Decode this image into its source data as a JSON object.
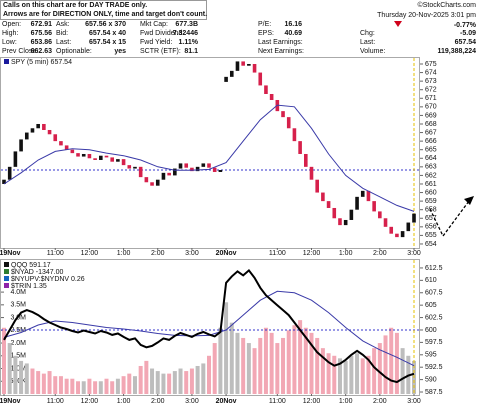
{
  "header": {
    "notes": [
      "Calls on this chart are for DAY TRADE only.",
      "Arrows are for DIRECTION ONLY, time and target don't count."
    ],
    "watermark": "©StockCharts.com",
    "timestamp": "Thursday 20-Nov-2025 3:01 pm",
    "quote": [
      [
        {
          "label": "Open:",
          "value": "672.91"
        },
        {
          "label": "Ask:",
          "value": "657.56 x 370"
        },
        {
          "label": "Mkt Cap:",
          "value": "677.3B"
        },
        {
          "label": "P/E:",
          "value": "16.16"
        },
        {
          "value": "-0.77%",
          "color": "#d0021b"
        }
      ],
      [
        {
          "label": "High:",
          "value": "675.56"
        },
        {
          "label": "Bid:",
          "value": "657.54 x 40"
        },
        {
          "label": "Fwd Dividend:",
          "value": "7.32446"
        },
        {
          "label": "EPS:",
          "value": "40.69"
        },
        {
          "label": "Chg:",
          "value": "-5.09",
          "color": "#d0021b"
        }
      ],
      [
        {
          "label": "Low:",
          "value": "653.86"
        },
        {
          "label": "Last:",
          "value": "657.54 x 15"
        },
        {
          "label": "Fwd Yield:",
          "value": "1.11%"
        },
        {
          "label": "Last Earnings:"
        },
        {
          "label": "Last:",
          "value": "657.54"
        }
      ],
      [
        {
          "label": "Prev Close:",
          "value": "662.63"
        },
        {
          "label": "Optionable:",
          "value": "yes"
        },
        {
          "label": "SCTR (ETF):",
          "value": "81.1"
        },
        {
          "label": "Next Earnings:"
        },
        {
          "label": "Volume:",
          "value": "119,388,224"
        }
      ]
    ]
  },
  "chart_data": [
    {
      "type": "candlestick",
      "legend": "SPY (5 min) 657.54",
      "legend_color": "#1a1a9c",
      "categories": [
        "19Nov",
        null,
        null,
        null,
        null,
        null,
        null,
        null,
        null,
        "11:00",
        null,
        null,
        null,
        null,
        null,
        "12:00",
        null,
        null,
        null,
        null,
        null,
        "1:00",
        null,
        null,
        null,
        null,
        null,
        "2:00",
        null,
        null,
        null,
        null,
        null,
        "3:00",
        null,
        null,
        null,
        null,
        null,
        "20Nov",
        null,
        null,
        null,
        null,
        null,
        null,
        null,
        null,
        "11:00",
        null,
        null,
        null,
        null,
        null,
        "12:00",
        null,
        null,
        null,
        null,
        null,
        "1:00",
        null,
        null,
        null,
        null,
        null,
        "2:00",
        null,
        null,
        null,
        null,
        null,
        "3:00"
      ],
      "open": [
        661.0,
        661.5,
        663.0,
        664.8,
        666.2,
        667.0,
        667.5,
        668.0,
        667.3,
        666.8,
        666.0,
        665.5,
        665.0,
        664.6,
        664.2,
        664.5,
        664.0,
        663.8,
        664.3,
        664.1,
        663.6,
        663.9,
        663.2,
        662.8,
        663.0,
        661.8,
        661.2,
        660.8,
        661.5,
        662.3,
        662.0,
        662.8,
        663.4,
        662.9,
        662.5,
        663.0,
        663.4,
        662.9,
        662.4,
        672.91,
        673.5,
        674.2,
        675.3,
        674.8,
        675.0,
        674.0,
        672.5,
        671.5,
        670.8,
        669.5,
        668.8,
        667.5,
        666.0,
        664.5,
        663.0,
        661.5,
        660.0,
        659.0,
        658.2,
        657.0,
        656.2,
        656.8,
        658.0,
        659.5,
        660.2,
        659.0,
        657.8,
        657.0,
        656.0,
        655.2,
        654.8,
        655.5,
        656.5
      ],
      "close": [
        661.5,
        663.0,
        664.8,
        666.2,
        667.0,
        667.5,
        668.0,
        667.3,
        666.8,
        666.0,
        665.5,
        665.0,
        664.6,
        664.2,
        664.5,
        664.0,
        663.8,
        664.3,
        664.1,
        663.6,
        663.9,
        663.2,
        662.8,
        663.0,
        661.8,
        661.2,
        660.8,
        661.5,
        662.3,
        662.0,
        662.8,
        663.4,
        662.9,
        662.5,
        663.0,
        663.4,
        662.9,
        662.4,
        662.63,
        673.5,
        674.2,
        675.3,
        674.8,
        675.0,
        674.0,
        672.5,
        671.5,
        670.8,
        669.5,
        668.8,
        667.5,
        666.0,
        664.5,
        663.0,
        661.5,
        660.0,
        659.0,
        658.2,
        657.0,
        656.2,
        656.8,
        658.0,
        659.5,
        660.2,
        659.0,
        657.8,
        657.0,
        656.0,
        655.2,
        654.8,
        655.5,
        656.5,
        657.54
      ],
      "up_color": "#111111",
      "down_color": "#d6204b",
      "ma": {
        "x": [
          0,
          3,
          6,
          9,
          12,
          15,
          18,
          21,
          24,
          27,
          30,
          33,
          36,
          39,
          42,
          45,
          48,
          51,
          54,
          57,
          60,
          63,
          66,
          69,
          72
        ],
        "values": [
          661.0,
          662.3,
          663.8,
          664.8,
          665.1,
          665.0,
          664.6,
          664.3,
          663.8,
          663.0,
          662.6,
          662.6,
          662.7,
          663.5,
          666.0,
          668.5,
          670.2,
          670.0,
          667.5,
          664.5,
          662.0,
          660.5,
          659.5,
          658.5,
          657.8
        ],
        "color": "#3a3aa8"
      },
      "reference_line": 662.63,
      "reference_color": "#3333cc",
      "ylim": [
        653.53,
        675.7
      ],
      "yticks": [
        654,
        655,
        656,
        657,
        658,
        659,
        660,
        661,
        662,
        663,
        664,
        665,
        666,
        667,
        668,
        669,
        670,
        671,
        672,
        673,
        674,
        675
      ]
    },
    {
      "type": "line-volume",
      "legend": [
        "QQQ 591.17",
        "$NYAD -1347.00",
        "$NYUPV:$NYDNV 0.26",
        "$TRIN 1.35"
      ],
      "legend_colors": [
        "#111111",
        "#2e7d32",
        "#1565c0",
        "#8e24aa"
      ],
      "categories": [
        "19Nov",
        null,
        null,
        null,
        null,
        null,
        null,
        null,
        null,
        "11:00",
        null,
        null,
        null,
        null,
        null,
        "12:00",
        null,
        null,
        null,
        null,
        null,
        "1:00",
        null,
        null,
        null,
        null,
        null,
        "2:00",
        null,
        null,
        null,
        null,
        null,
        "3:00",
        null,
        null,
        null,
        null,
        null,
        "20Nov",
        null,
        null,
        null,
        null,
        null,
        null,
        null,
        null,
        "11:00",
        null,
        null,
        null,
        null,
        null,
        "12:00",
        null,
        null,
        null,
        null,
        null,
        "1:00",
        null,
        null,
        null,
        null,
        null,
        "2:00",
        null,
        null,
        null,
        null,
        null,
        "3:00"
      ],
      "values": [
        598.0,
        600.0,
        602.0,
        603.5,
        604.0,
        603.6,
        603.0,
        602.2,
        601.5,
        601.0,
        600.5,
        600.2,
        599.8,
        599.5,
        599.9,
        599.6,
        599.3,
        599.8,
        599.5,
        599.0,
        599.3,
        598.6,
        598.0,
        598.3,
        597.0,
        596.5,
        596.8,
        597.5,
        598.3,
        598.0,
        598.8,
        599.4,
        599.0,
        598.6,
        599.2,
        599.6,
        599.1,
        598.7,
        599.6,
        609.5,
        610.8,
        611.8,
        611.0,
        612.0,
        610.5,
        608.5,
        607.0,
        606.0,
        605.0,
        604.0,
        603.0,
        601.5,
        600.0,
        598.5,
        597.0,
        595.5,
        594.5,
        593.5,
        592.8,
        593.2,
        594.0,
        595.0,
        595.8,
        595.0,
        594.0,
        592.5,
        591.5,
        590.5,
        589.8,
        589.5,
        590.2,
        590.8,
        591.17
      ],
      "color": "#000000",
      "ma": {
        "x": [
          0,
          3,
          6,
          9,
          12,
          15,
          18,
          21,
          24,
          27,
          30,
          33,
          36,
          39,
          42,
          45,
          48,
          51,
          54,
          57,
          60,
          63,
          66,
          69,
          72
        ],
        "values": [
          598.5,
          599.5,
          601.0,
          601.8,
          601.5,
          601.0,
          600.5,
          600.2,
          599.8,
          599.3,
          598.9,
          598.8,
          598.9,
          600.0,
          603.0,
          606.0,
          607.8,
          607.5,
          606.0,
          603.5,
          600.5,
          597.8,
          596.0,
          594.5,
          592.8
        ],
        "color": "#3a3aa8"
      },
      "volume": [
        2600000,
        2000000,
        1500000,
        1300000,
        1200000,
        1000000,
        900000,
        800000,
        900000,
        700000,
        700000,
        600000,
        600000,
        500000,
        500000,
        600000,
        500000,
        500000,
        600000,
        500000,
        600000,
        700000,
        800000,
        700000,
        1100000,
        1300000,
        1000000,
        900000,
        800000,
        800000,
        900000,
        1000000,
        900000,
        1000000,
        1100000,
        1200000,
        1500000,
        2000000,
        2600000,
        3600000,
        2800000,
        2400000,
        2200000,
        2000000,
        1800000,
        2200000,
        2600000,
        2400000,
        2000000,
        2200000,
        2500000,
        2700000,
        2900000,
        2600000,
        2400000,
        2200000,
        1800000,
        1600000,
        1500000,
        1400000,
        1300000,
        1500000,
        1600000,
        1400000,
        1500000,
        1800000,
        2000000,
        2300000,
        2600000,
        2400000,
        1800000,
        1500000,
        1300000
      ],
      "volume_up_color": "#bdbdbd",
      "volume_down_color": "#f2a7b4",
      "reference_line": 600.0,
      "reference_color": "#3333cc",
      "ylim": [
        587.1,
        614.1
      ],
      "yticks": [
        587.5,
        590.0,
        592.5,
        595.0,
        597.5,
        600.0,
        602.5,
        605.0,
        607.5,
        610.0,
        612.5
      ],
      "y2lim": [
        0,
        5260000
      ],
      "y2ticks": [
        {
          "value": 500000,
          "label": "500K"
        },
        {
          "value": 1000000,
          "label": "1.0M"
        },
        {
          "value": 1500000,
          "label": "1.5M"
        },
        {
          "value": 2000000,
          "label": "2.0M"
        },
        {
          "value": 2500000,
          "label": "2.5M"
        },
        {
          "value": 3000000,
          "label": "3.0M"
        },
        {
          "value": 3500000,
          "label": "3.5M"
        },
        {
          "value": 4000000,
          "label": "4.0M"
        }
      ]
    }
  ]
}
